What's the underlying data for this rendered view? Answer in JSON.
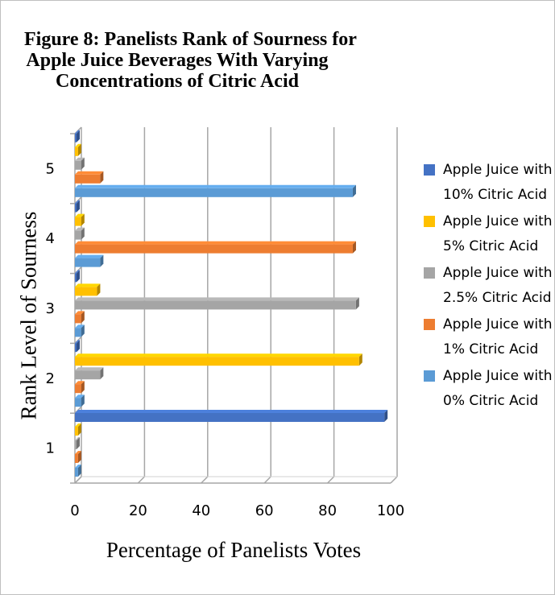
{
  "chart_data": {
    "type": "bar",
    "orientation": "horizontal",
    "title_lines": [
      "Figure 8: Panelists Rank of Sourness for",
      "Apple Juice Beverages With Varying",
      "Concentrations of Citric Acid"
    ],
    "xlabel": "Percentage of Panelists Votes",
    "ylabel": "Rank Level of Sourness",
    "categories": [
      "1",
      "2",
      "3",
      "4",
      "5"
    ],
    "xlim": [
      0,
      100
    ],
    "xticks": [
      "0",
      "20",
      "40",
      "60",
      "80",
      "100"
    ],
    "grid": true,
    "legend_position": "right",
    "series": [
      {
        "name": "Apple Juice with 0% Citric Acid",
        "color": "#5b9bd5",
        "values": [
          1,
          2,
          2,
          8,
          88
        ]
      },
      {
        "name": "Apple Juice with 1% Citric Acid",
        "color": "#ed7d31",
        "values": [
          1,
          2,
          2,
          88,
          8
        ]
      },
      {
        "name": "Apple Juice with 2.5% Citric Acid",
        "color": "#a5a5a5",
        "values": [
          0,
          8,
          89,
          2,
          2
        ]
      },
      {
        "name": "Apple Juice with 5% Citric Acid",
        "color": "#ffc000",
        "values": [
          1,
          90,
          7,
          2,
          1
        ]
      },
      {
        "name": "Apple Juice with 10% Citric Acid",
        "color": "#4472c4",
        "values": [
          98,
          0,
          0,
          0,
          0
        ]
      }
    ]
  }
}
